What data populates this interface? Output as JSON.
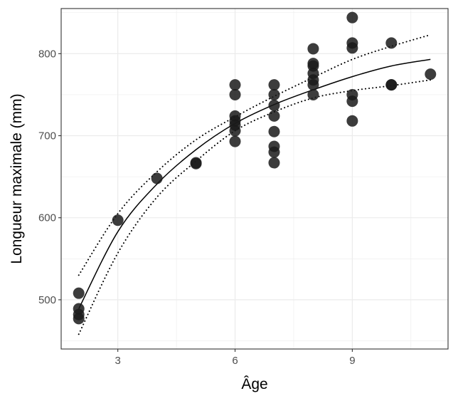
{
  "chart_data": {
    "type": "scatter",
    "title": "",
    "xlabel": "Âge",
    "ylabel": "Longueur maximale (mm)",
    "xlim": [
      1.55,
      11.45
    ],
    "ylim": [
      440,
      855
    ],
    "xticks": [
      3,
      6,
      9
    ],
    "yticks": [
      500,
      600,
      700,
      800
    ],
    "grid": true,
    "legend": "none",
    "colors": {
      "point": "#1a1a1a",
      "line": "#000000",
      "grid": "#ebebeb",
      "panel_border": "#333333"
    },
    "points": [
      {
        "x": 2,
        "y": 508
      },
      {
        "x": 2,
        "y": 489
      },
      {
        "x": 2,
        "y": 482
      },
      {
        "x": 2,
        "y": 477
      },
      {
        "x": 3,
        "y": 597
      },
      {
        "x": 4,
        "y": 648
      },
      {
        "x": 5,
        "y": 667
      },
      {
        "x": 5,
        "y": 666
      },
      {
        "x": 6,
        "y": 762
      },
      {
        "x": 6,
        "y": 750
      },
      {
        "x": 6,
        "y": 724
      },
      {
        "x": 6,
        "y": 718
      },
      {
        "x": 6,
        "y": 713
      },
      {
        "x": 6,
        "y": 706
      },
      {
        "x": 6,
        "y": 693
      },
      {
        "x": 7,
        "y": 762
      },
      {
        "x": 7,
        "y": 750
      },
      {
        "x": 7,
        "y": 737
      },
      {
        "x": 7,
        "y": 724
      },
      {
        "x": 7,
        "y": 705
      },
      {
        "x": 7,
        "y": 687
      },
      {
        "x": 7,
        "y": 680
      },
      {
        "x": 7,
        "y": 667
      },
      {
        "x": 8,
        "y": 806
      },
      {
        "x": 8,
        "y": 788
      },
      {
        "x": 8,
        "y": 785
      },
      {
        "x": 8,
        "y": 776
      },
      {
        "x": 8,
        "y": 768
      },
      {
        "x": 8,
        "y": 762
      },
      {
        "x": 8,
        "y": 750
      },
      {
        "x": 9,
        "y": 844
      },
      {
        "x": 9,
        "y": 813
      },
      {
        "x": 9,
        "y": 807
      },
      {
        "x": 9,
        "y": 750
      },
      {
        "x": 9,
        "y": 742
      },
      {
        "x": 9,
        "y": 718
      },
      {
        "x": 10,
        "y": 813
      },
      {
        "x": 10,
        "y": 762
      },
      {
        "x": 10,
        "y": 762
      },
      {
        "x": 11,
        "y": 775
      }
    ],
    "fit": {
      "x": [
        2,
        3,
        4,
        5,
        6,
        7,
        8,
        9,
        10,
        11
      ],
      "y": [
        489,
        583,
        641,
        683,
        715,
        738,
        756,
        772,
        785,
        793
      ]
    },
    "fit_upper": {
      "x": [
        2,
        3,
        4,
        5,
        6,
        7,
        8,
        9,
        10,
        11
      ],
      "y": [
        530,
        605,
        656,
        695,
        723,
        748,
        771,
        793,
        809,
        823
      ]
    },
    "fit_lower": {
      "x": [
        2,
        3,
        4,
        5,
        6,
        7,
        8,
        9,
        10,
        11
      ],
      "y": [
        458,
        557,
        625,
        669,
        706,
        729,
        746,
        755,
        761,
        768
      ]
    }
  }
}
